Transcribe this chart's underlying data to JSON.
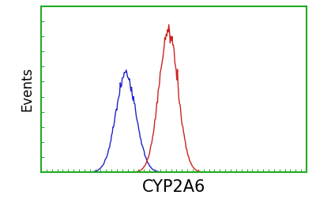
{
  "title": "",
  "xlabel": "CYP2A6",
  "ylabel": "Events",
  "xlabel_fontsize": 15,
  "ylabel_fontsize": 12,
  "background_color": "#ffffff",
  "spine_color": "#22aa22",
  "spine_linewidth": 1.5,
  "blue_curve": {
    "mean": 3.2,
    "std": 0.38,
    "amplitude": 0.7,
    "color": "#2222cc",
    "linewidth": 1.0
  },
  "red_curve": {
    "mean": 4.8,
    "std": 0.36,
    "amplitude": 1.0,
    "color": "#cc2222",
    "linewidth": 1.0
  },
  "noise_scale": 0.04,
  "baseline_noise": 0.012,
  "x_min": 0,
  "x_max": 10,
  "y_min": 0,
  "y_max": 1.18,
  "n_points": 400,
  "n_baseline": 600,
  "x_ticks_count": 50,
  "y_ticks_count": 12
}
